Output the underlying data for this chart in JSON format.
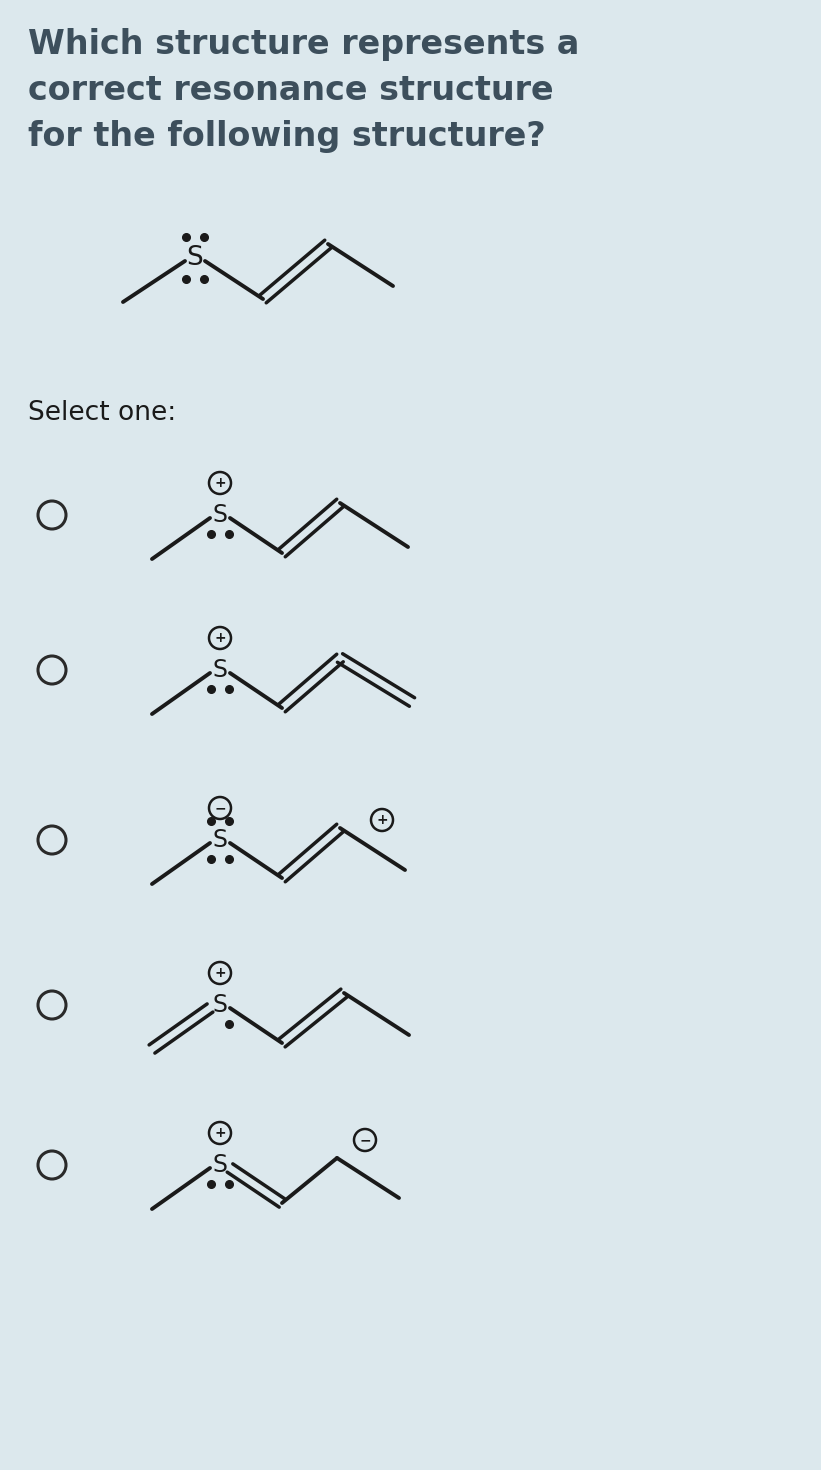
{
  "background_color": "#dce8ed",
  "title_lines": [
    "Which structure represents a",
    "correct resonance structure",
    "for the following structure?"
  ],
  "title_fontsize": 24,
  "title_color": "#3d4f5c",
  "select_text": "Select one:",
  "select_fontsize": 19,
  "select_color": "#1a1a1a",
  "line_color": "#1a1a1a",
  "line_width": 2.8,
  "dot_size": 5.5
}
